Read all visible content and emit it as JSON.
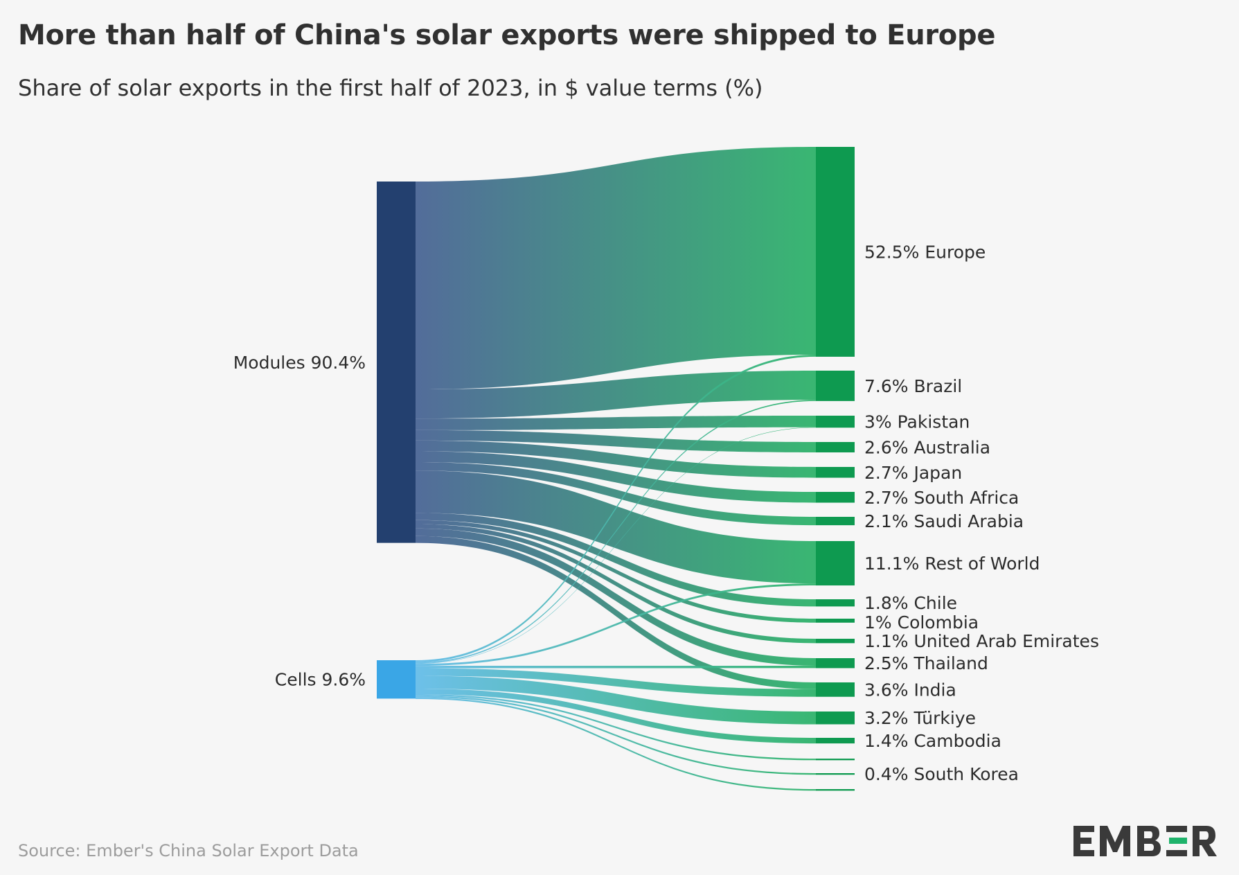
{
  "title": "More than half of China's solar exports were shipped to Europe",
  "subtitle": "Share of solar exports in the first half of 2023, in $ value terms (%)",
  "source": "Source: Ember's China Solar Export Data",
  "logo_text": "EMBER",
  "colors": {
    "modules_node": "#23406f",
    "cells_node": "#3aa6e6",
    "destination_node": "#0e9a50",
    "modules_link_start": "#4a6595",
    "cells_link_start": "#66bde9",
    "link_end": "#2fb36b",
    "logo_dark": "#3a3a3a",
    "logo_accent": "#1fb36b"
  },
  "chart_data": {
    "type": "sankey",
    "title": "More than half of China's solar exports were shipped to Europe",
    "subtitle": "Share of solar exports in the first half of 2023, in $ value terms (%)",
    "unit": "%",
    "sources": [
      {
        "name": "Modules",
        "value": 90.4,
        "label": "Modules 90.4%"
      },
      {
        "name": "Cells",
        "value": 9.6,
        "label": "Cells 9.6%"
      }
    ],
    "targets": [
      {
        "name": "Europe",
        "value": 52.5,
        "label": "52.5% Europe"
      },
      {
        "name": "Brazil",
        "value": 7.6,
        "label": "7.6% Brazil"
      },
      {
        "name": "Pakistan",
        "value": 3,
        "label": "3% Pakistan"
      },
      {
        "name": "Australia",
        "value": 2.6,
        "label": "2.6% Australia"
      },
      {
        "name": "Japan",
        "value": 2.7,
        "label": "2.7% Japan"
      },
      {
        "name": "South Africa",
        "value": 2.7,
        "label": "2.7% South Africa"
      },
      {
        "name": "Saudi Arabia",
        "value": 2.1,
        "label": "2.1% Saudi Arabia"
      },
      {
        "name": "Rest of World",
        "value": 11.1,
        "label": "11.1% Rest of World"
      },
      {
        "name": "Chile",
        "value": 1.8,
        "label": "1.8% Chile"
      },
      {
        "name": "Colombia",
        "value": 1,
        "label": "1% Colombia"
      },
      {
        "name": "United Arab Emirates",
        "value": 1.1,
        "label": "1.1% United Arab Emirates"
      },
      {
        "name": "Thailand",
        "value": 2.5,
        "label": "2.5% Thailand"
      },
      {
        "name": "India",
        "value": 3.6,
        "label": "3.6% India"
      },
      {
        "name": "Türkiye",
        "value": 3.2,
        "label": "3.2% Türkiye"
      },
      {
        "name": "Cambodia",
        "value": 1.4,
        "label": "1.4% Cambodia"
      },
      {
        "name": "Unlabeled A",
        "value": 0.4,
        "label": ""
      },
      {
        "name": "South Korea",
        "value": 0.4,
        "label": "0.4% South Korea"
      },
      {
        "name": "Unlabeled B",
        "value": 0.4,
        "label": ""
      }
    ],
    "flows": [
      {
        "source": "Modules",
        "target": "Europe",
        "value": 52.0
      },
      {
        "source": "Modules",
        "target": "Brazil",
        "value": 7.3
      },
      {
        "source": "Modules",
        "target": "Pakistan",
        "value": 2.9
      },
      {
        "source": "Modules",
        "target": "Australia",
        "value": 2.6
      },
      {
        "source": "Modules",
        "target": "Japan",
        "value": 2.7
      },
      {
        "source": "Modules",
        "target": "South Africa",
        "value": 2.7
      },
      {
        "source": "Modules",
        "target": "Saudi Arabia",
        "value": 2.1
      },
      {
        "source": "Modules",
        "target": "Rest of World",
        "value": 10.6
      },
      {
        "source": "Modules",
        "target": "Chile",
        "value": 1.8
      },
      {
        "source": "Modules",
        "target": "Colombia",
        "value": 1.0
      },
      {
        "source": "Modules",
        "target": "United Arab Emirates",
        "value": 1.1
      },
      {
        "source": "Modules",
        "target": "Thailand",
        "value": 1.9
      },
      {
        "source": "Modules",
        "target": "India",
        "value": 1.7
      },
      {
        "source": "Cells",
        "target": "Europe",
        "value": 0.5
      },
      {
        "source": "Cells",
        "target": "Brazil",
        "value": 0.3
      },
      {
        "source": "Cells",
        "target": "Pakistan",
        "value": 0.1
      },
      {
        "source": "Cells",
        "target": "Rest of World",
        "value": 0.5
      },
      {
        "source": "Cells",
        "target": "Thailand",
        "value": 0.6
      },
      {
        "source": "Cells",
        "target": "India",
        "value": 1.9
      },
      {
        "source": "Cells",
        "target": "Türkiye",
        "value": 3.2
      },
      {
        "source": "Cells",
        "target": "Cambodia",
        "value": 1.4
      },
      {
        "source": "Cells",
        "target": "Unlabeled A",
        "value": 0.4
      },
      {
        "source": "Cells",
        "target": "South Korea",
        "value": 0.4
      },
      {
        "source": "Cells",
        "target": "Unlabeled B",
        "value": 0.4
      }
    ]
  }
}
